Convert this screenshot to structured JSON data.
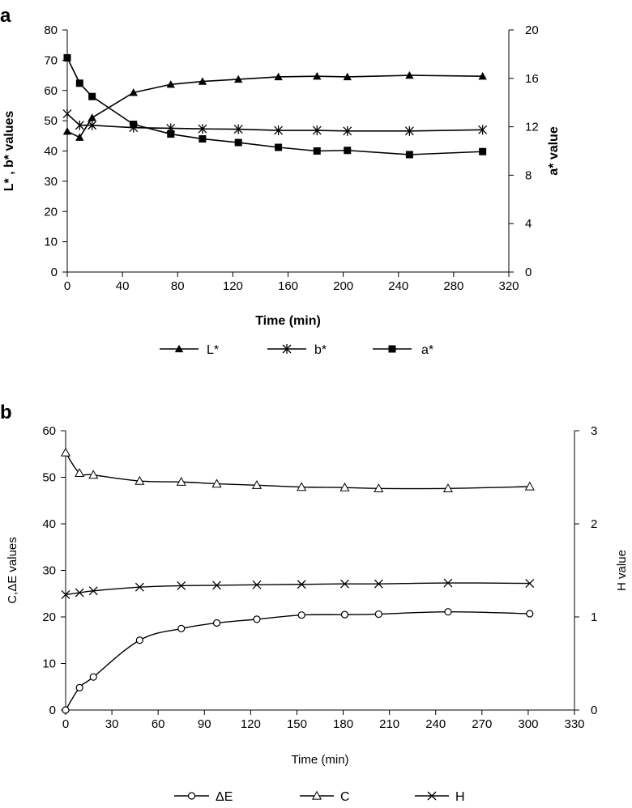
{
  "chart_data": [
    {
      "panel": "a",
      "type": "line",
      "title": "",
      "xlabel": "Time (min)",
      "ylabel": "L* , b* values",
      "y2label": "a* value",
      "xlim": [
        0,
        320
      ],
      "ylim": [
        0,
        80
      ],
      "y2lim": [
        0,
        20
      ],
      "xticks": [
        0,
        40,
        80,
        120,
        160,
        200,
        240,
        280,
        320
      ],
      "yticks": [
        0,
        10,
        20,
        30,
        40,
        50,
        60,
        70,
        80
      ],
      "y2ticks": [
        0,
        4,
        8,
        12,
        16,
        20
      ],
      "grid": false,
      "legend": "bottom",
      "series": [
        {
          "name": "L*",
          "axis": "left",
          "marker": "triangle-filled",
          "x": [
            0,
            9,
            18,
            48,
            75,
            98,
            124,
            153,
            181,
            203,
            248,
            301
          ],
          "values": [
            46.5,
            44.5,
            51,
            59.3,
            62,
            63,
            63.7,
            64.5,
            64.7,
            64.5,
            65,
            64.7
          ]
        },
        {
          "name": "b*",
          "axis": "left",
          "marker": "asterisk",
          "x": [
            0,
            9,
            18,
            48,
            75,
            98,
            124,
            153,
            181,
            203,
            248,
            301
          ],
          "values": [
            52.3,
            48.5,
            48.5,
            47.7,
            47.5,
            47.3,
            47.2,
            46.8,
            46.8,
            46.6,
            46.6,
            47
          ]
        },
        {
          "name": "a*",
          "axis": "right",
          "marker": "square-filled",
          "x": [
            0,
            9,
            18,
            48,
            75,
            98,
            124,
            153,
            181,
            203,
            248,
            301
          ],
          "values": [
            17.7,
            15.6,
            14.5,
            12.2,
            11.4,
            11,
            10.7,
            10.3,
            10,
            10.05,
            9.7,
            9.95
          ]
        }
      ]
    },
    {
      "panel": "b",
      "type": "line",
      "title": "",
      "xlabel": "Time (min)",
      "ylabel": "C,ΔE values",
      "y2label": "H value",
      "xlim": [
        0,
        330
      ],
      "ylim": [
        0,
        60
      ],
      "y2lim": [
        0,
        3
      ],
      "xticks": [
        0,
        30,
        60,
        90,
        120,
        150,
        180,
        210,
        240,
        270,
        300,
        330
      ],
      "yticks": [
        0,
        10,
        20,
        30,
        40,
        50,
        60
      ],
      "y2ticks": [
        0,
        1,
        2,
        3
      ],
      "grid": false,
      "legend": "bottom",
      "series": [
        {
          "name": "ΔE",
          "axis": "left",
          "marker": "circle-open",
          "smooth": true,
          "x": [
            0,
            9,
            18,
            48,
            75,
            98,
            124,
            153,
            181,
            203,
            248,
            301
          ],
          "values": [
            0,
            4.8,
            7.1,
            15,
            17.5,
            18.7,
            19.5,
            20.4,
            20.5,
            20.6,
            21.1,
            20.7
          ]
        },
        {
          "name": "C",
          "axis": "left",
          "marker": "triangle-open",
          "smooth": true,
          "x": [
            0,
            9,
            18,
            48,
            75,
            98,
            124,
            153,
            181,
            203,
            248,
            301
          ],
          "values": [
            55.3,
            50.9,
            50.5,
            49.2,
            49,
            48.6,
            48.3,
            47.9,
            47.8,
            47.6,
            47.6,
            48
          ]
        },
        {
          "name": "H",
          "axis": "right",
          "marker": "x",
          "smooth": true,
          "x": [
            0,
            9,
            18,
            48,
            75,
            98,
            124,
            153,
            181,
            203,
            248,
            301
          ],
          "values": [
            1.24,
            1.26,
            1.28,
            1.32,
            1.335,
            1.34,
            1.345,
            1.35,
            1.355,
            1.355,
            1.365,
            1.36
          ]
        }
      ]
    }
  ]
}
